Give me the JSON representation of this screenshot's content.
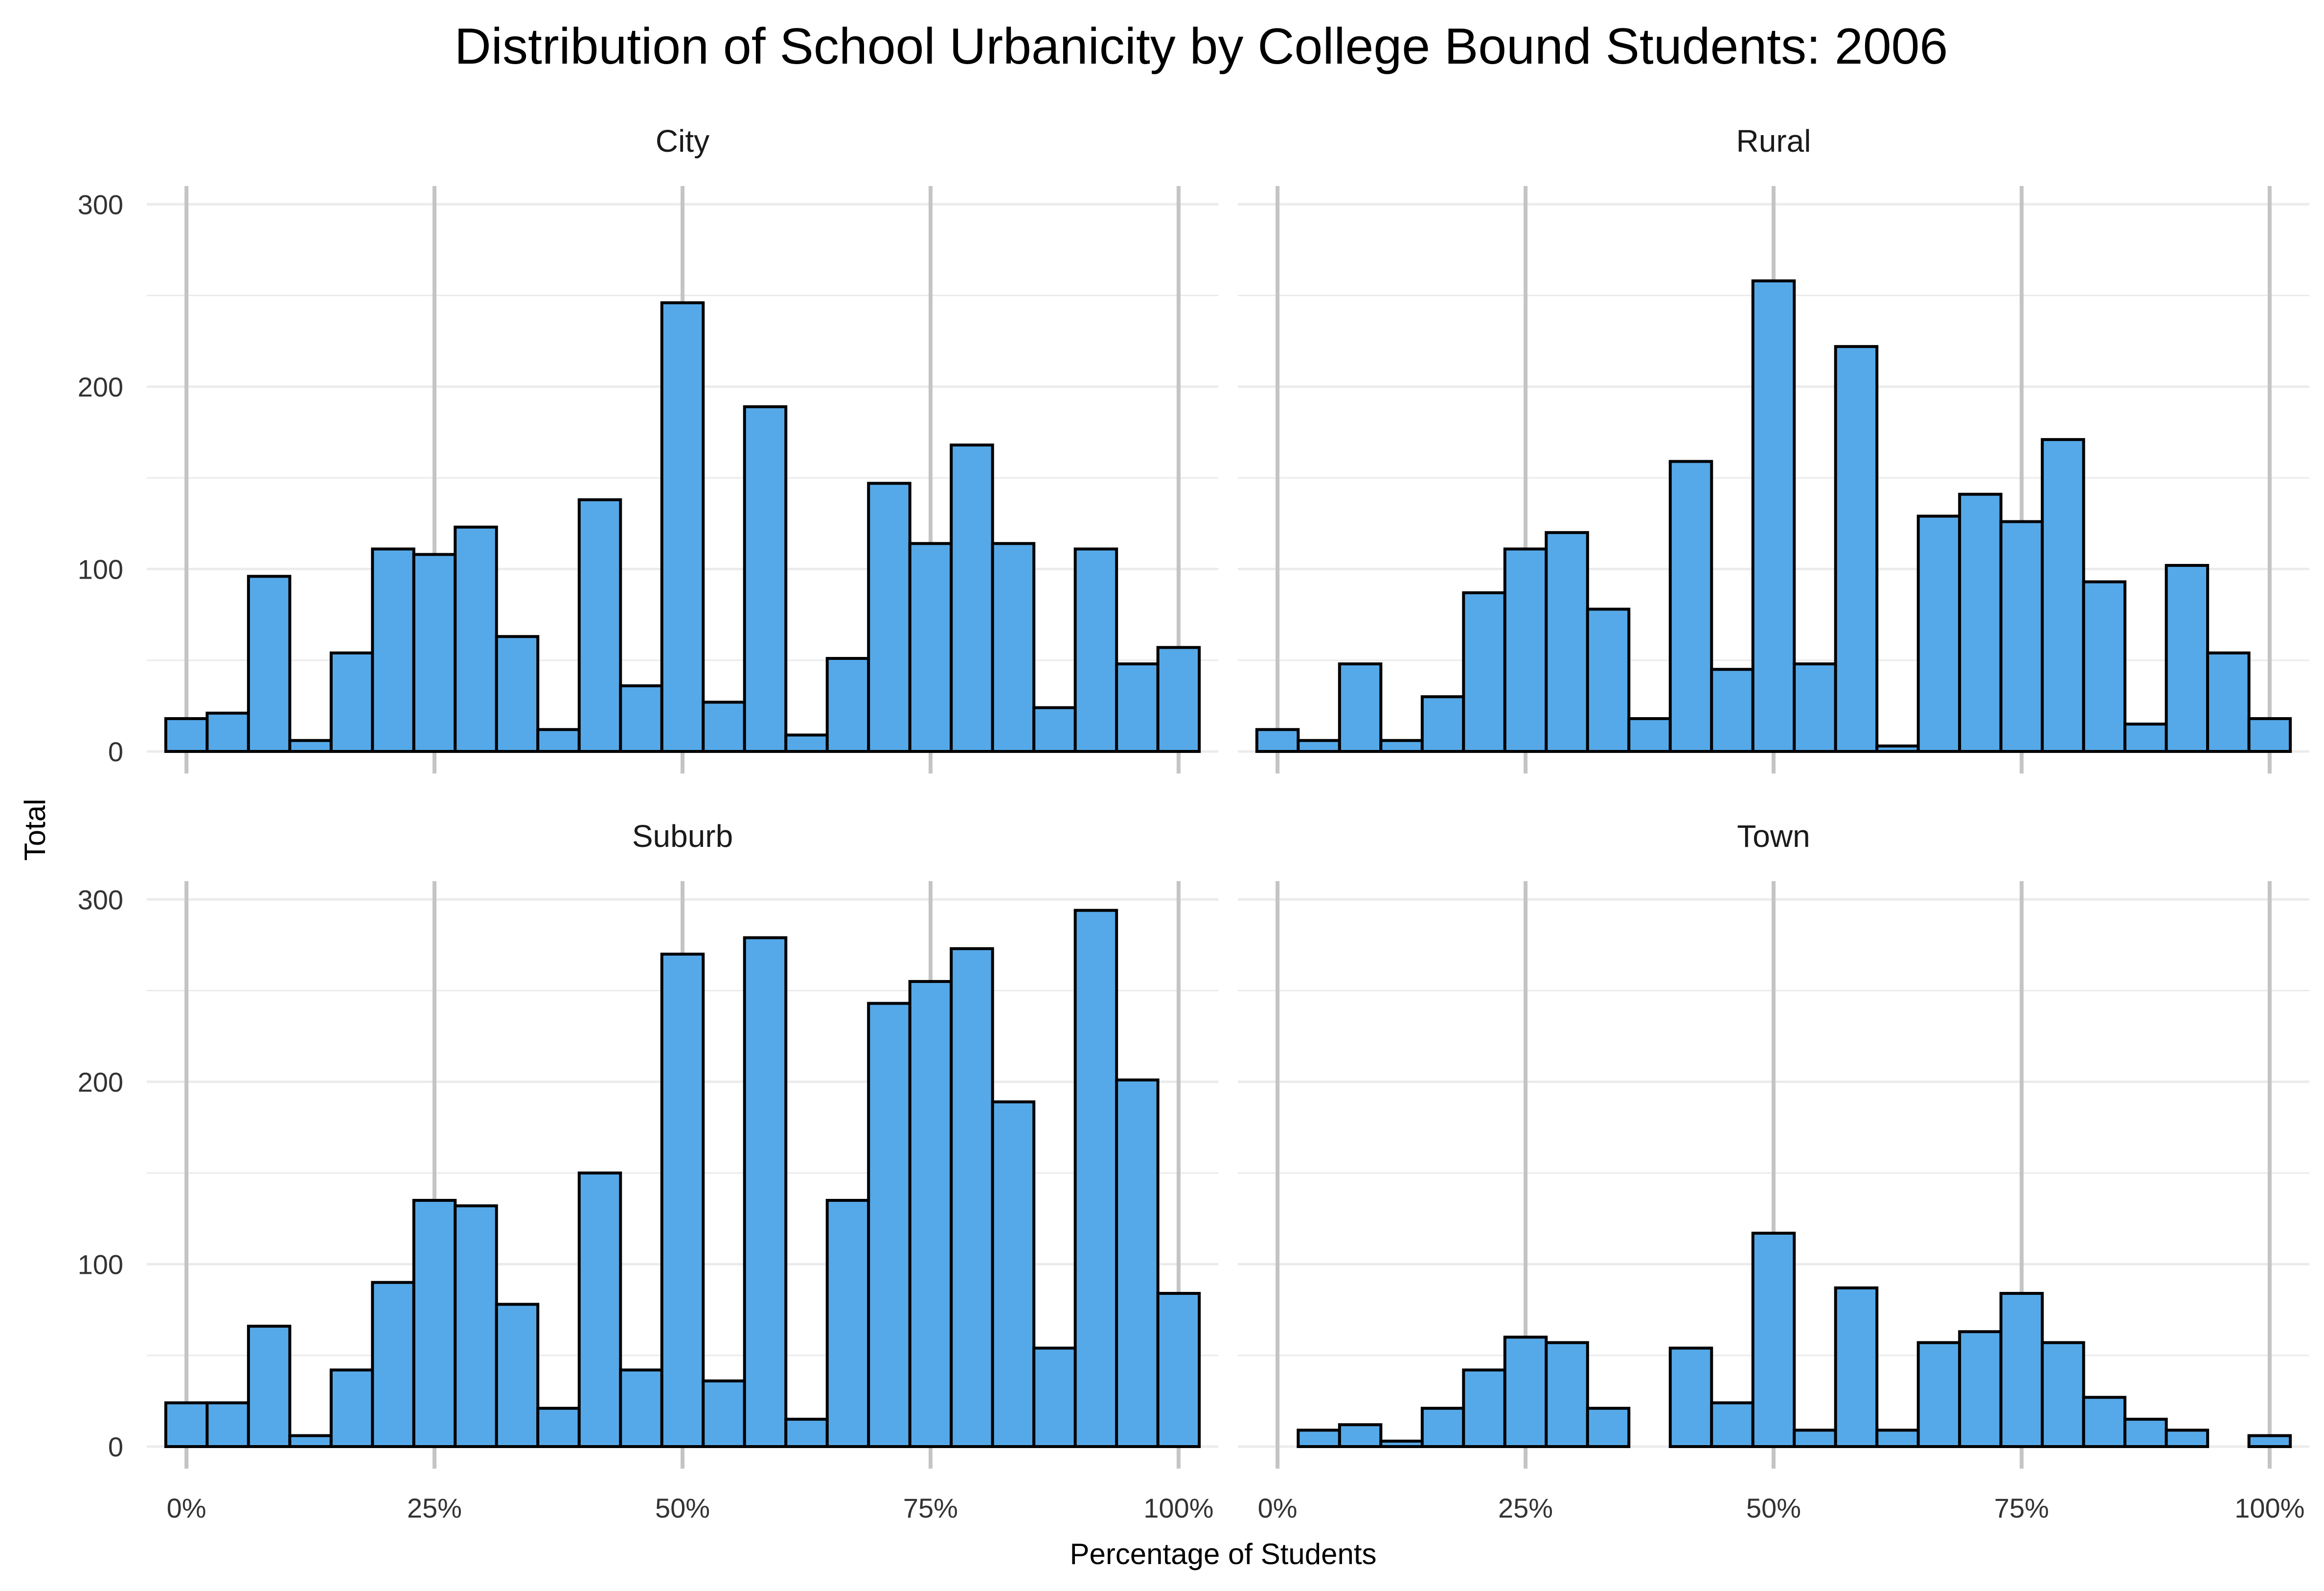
{
  "title": "Distribution of School Urbanicity by College Bound Students: 2006",
  "xlabel": "Percentage of Students",
  "ylabel": "Total",
  "colors": {
    "bar_fill": "#56A9E8",
    "bar_stroke": "#000000",
    "major_grid": "#C4C4C4",
    "minor_grid": "#EBEBEB",
    "text": "#333333"
  },
  "chart_data": {
    "type": "bar",
    "layout": "facet-2x2",
    "title": "Distribution of School Urbanicity by College Bound Students: 2006",
    "xlabel": "Percentage of Students",
    "ylabel": "Total",
    "xlim": [
      -0.04,
      1.04
    ],
    "ylim": [
      0,
      310
    ],
    "bin_width": 0.04167,
    "bin_centers": [
      0,
      0.04167,
      0.08333,
      0.125,
      0.16667,
      0.20833,
      0.25,
      0.29167,
      0.33333,
      0.375,
      0.41667,
      0.45833,
      0.5,
      0.54167,
      0.58333,
      0.625,
      0.66667,
      0.70833,
      0.75,
      0.79167,
      0.83333,
      0.875,
      0.91667,
      0.95833,
      1.0
    ],
    "x_ticks": [
      0,
      0.25,
      0.5,
      0.75,
      1.0
    ],
    "x_tick_labels": [
      "0%",
      "25%",
      "50%",
      "75%",
      "100%"
    ],
    "y_ticks": [
      0,
      100,
      200,
      300
    ],
    "y_tick_labels": [
      "0",
      "100",
      "200",
      "300"
    ],
    "grid": true,
    "panels": [
      {
        "name": "City",
        "values": [
          18,
          21,
          96,
          6,
          54,
          111,
          108,
          123,
          63,
          12,
          138,
          36,
          246,
          27,
          189,
          9,
          51,
          147,
          114,
          168,
          114,
          24,
          111,
          48,
          57
        ]
      },
      {
        "name": "Rural",
        "values": [
          12,
          6,
          48,
          6,
          30,
          87,
          111,
          120,
          78,
          18,
          159,
          45,
          258,
          48,
          222,
          3,
          129,
          141,
          126,
          171,
          93,
          15,
          102,
          54,
          18
        ]
      },
      {
        "name": "Suburb",
        "values": [
          24,
          24,
          66,
          6,
          42,
          90,
          135,
          132,
          78,
          21,
          150,
          42,
          270,
          36,
          279,
          15,
          135,
          243,
          255,
          273,
          189,
          54,
          294,
          201,
          84
        ]
      },
      {
        "name": "Town",
        "values": [
          0,
          9,
          12,
          3,
          21,
          42,
          60,
          57,
          21,
          0,
          54,
          24,
          117,
          9,
          87,
          9,
          57,
          63,
          84,
          57,
          27,
          15,
          9,
          0,
          6
        ]
      }
    ]
  }
}
